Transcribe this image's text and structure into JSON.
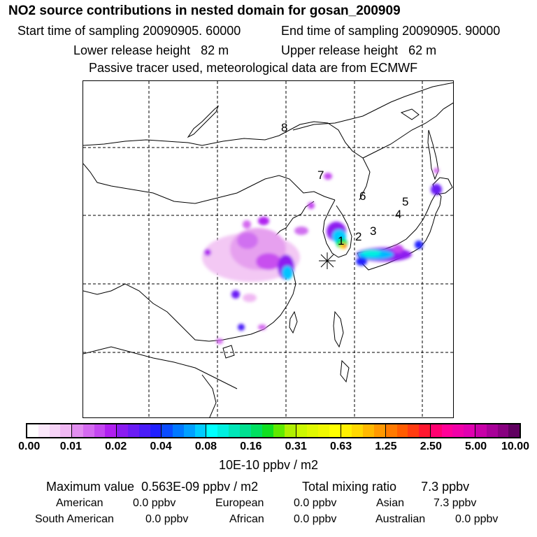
{
  "title": "NO2 source contributions in nested domain for gosan_200909",
  "header": {
    "start_label": "Start time of sampling",
    "start_value": "20090905. 60000",
    "end_label": "End time of sampling",
    "end_value": "20090905. 90000",
    "lower_label": "Lower release height",
    "lower_value": "82 m",
    "upper_label": "Upper release height",
    "upper_value": "62 m",
    "note": "Passive tracer used, meteorological data are from ECMWF"
  },
  "map": {
    "labels": [
      "8",
      "7",
      "6",
      "5",
      "4",
      "3",
      "2",
      "1"
    ],
    "station_marker": "star-marker"
  },
  "colorbar": {
    "ticks": [
      "0.00",
      "0.01",
      "0.02",
      "0.04",
      "0.08",
      "0.16",
      "0.31",
      "0.63",
      "1.25",
      "2.50",
      "5.00",
      "10.00"
    ],
    "segments": [
      [
        "#ffffff",
        "#fbe8fb",
        "#f6d4f7",
        "#f0b8f3"
      ],
      [
        "#e28ef0",
        "#d46af0",
        "#c447f0",
        "#b020f0"
      ],
      [
        "#8a1cf0",
        "#6a1cf4",
        "#4a1cf8",
        "#2020ff"
      ],
      [
        "#0a4cff",
        "#0078ff",
        "#00a0ff",
        "#00ccff"
      ],
      [
        "#00ffff",
        "#00f0e0",
        "#00e6b8",
        "#00e090"
      ],
      [
        "#00e060",
        "#10e020",
        "#60ea00",
        "#b0f000"
      ],
      [
        "#ccf800",
        "#e0f800",
        "#f0f800",
        "#ffff00"
      ],
      [
        "#fff000",
        "#ffd800",
        "#ffb800",
        "#ff9800"
      ],
      [
        "#ff7a00",
        "#ff5c00",
        "#ff3c10",
        "#ff1830"
      ],
      [
        "#ff0070",
        "#ff0098",
        "#f000a8",
        "#e000b0"
      ],
      [
        "#c800a8",
        "#a80098",
        "#880080",
        "#600060"
      ]
    ],
    "unit": "10E-10 ppbv / m2"
  },
  "stats": {
    "max_label": "Maximum value",
    "max_value": "0.563E-09 ppbv / m2",
    "total_label": "Total mixing ratio",
    "total_value": "7.3 ppbv",
    "regions": [
      {
        "name": "American",
        "value": "0.0 ppbv"
      },
      {
        "name": "European",
        "value": "0.0 ppbv"
      },
      {
        "name": "Asian",
        "value": "7.3 ppbv"
      },
      {
        "name": "South American",
        "value": "0.0 ppbv"
      },
      {
        "name": "African",
        "value": "0.0 ppbv"
      },
      {
        "name": "Australian",
        "value": "0.0 ppbv"
      }
    ]
  }
}
